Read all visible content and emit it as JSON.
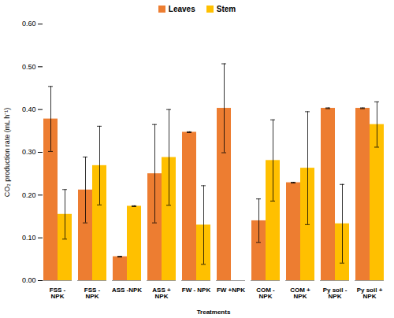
{
  "chart_data": {
    "type": "bar",
    "x_label": "Treatments",
    "y_label": "CO₂ production rate (mL h⁻¹)",
    "categories": [
      "FSS - NPK",
      "FSS - NPK",
      "ASS -NPK",
      "ASS + NPK",
      "FW - NPK",
      "FW +NPK",
      "COM - NPK",
      "COM + NPK",
      "Py soil - NPK",
      "Py soil + NPK"
    ],
    "series": [
      {
        "name": "Leaves",
        "color": "#ed7d31",
        "values": [
          0.378,
          0.212,
          0.056,
          0.25,
          0.347,
          0.403,
          0.14,
          0.229,
          0.403,
          0.403
        ],
        "errors": [
          0.076,
          0.077,
          0.001,
          0.115,
          0.001,
          0.104,
          0.051,
          0.001,
          0.001,
          0.001
        ]
      },
      {
        "name": "Stem",
        "color": "#ffc000",
        "values": [
          0.155,
          0.269,
          0.174,
          0.288,
          0.13,
          null,
          0.281,
          0.263,
          0.133,
          0.365
        ],
        "errors": [
          0.058,
          0.092,
          0.001,
          0.112,
          0.092,
          null,
          0.095,
          0.132,
          0.092,
          0.053
        ]
      }
    ],
    "ylim": [
      0,
      0.6
    ],
    "yticks": [
      0,
      0.1,
      0.2,
      0.3,
      0.4,
      0.5,
      0.6
    ],
    "legend": "top"
  }
}
